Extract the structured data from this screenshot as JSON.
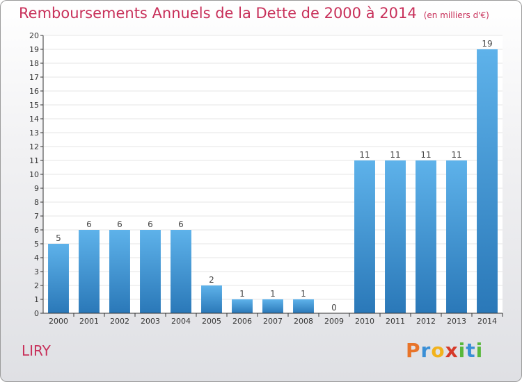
{
  "title": "Remboursements Annuels de la Dette de 2000 à 2014",
  "subtitle": "(en milliers d'€)",
  "commune": "LIRY",
  "logo": {
    "letters": [
      "P",
      "r",
      "o",
      "x",
      "i",
      "t",
      "i"
    ],
    "colors": [
      "#e8742a",
      "#3a8fd6",
      "#f2b21c",
      "#d63a2a",
      "#59b83c",
      "#3a8fd6",
      "#59b83c"
    ]
  },
  "colors": {
    "title": "#c8305a",
    "bar_light": "#5aaee6",
    "bar_dark": "#2a78b8",
    "axis": "#333333",
    "grid": "#e6e6e6"
  },
  "chart_data": {
    "type": "bar",
    "categories": [
      "2000",
      "2001",
      "2002",
      "2003",
      "2004",
      "2005",
      "2006",
      "2007",
      "2008",
      "2009",
      "2010",
      "2011",
      "2012",
      "2013",
      "2014"
    ],
    "values": [
      5,
      6,
      6,
      6,
      6,
      2,
      1,
      1,
      1,
      0,
      11,
      11,
      11,
      11,
      19
    ],
    "ylim": [
      0,
      20
    ],
    "yticks": [
      0,
      1,
      2,
      3,
      4,
      5,
      6,
      7,
      8,
      9,
      10,
      11,
      12,
      13,
      14,
      15,
      16,
      17,
      18,
      19,
      20
    ],
    "title": "Remboursements Annuels de la Dette de 2000 à 2014",
    "xlabel": "",
    "ylabel": "",
    "grid": "horizontal",
    "data_labels": true
  }
}
